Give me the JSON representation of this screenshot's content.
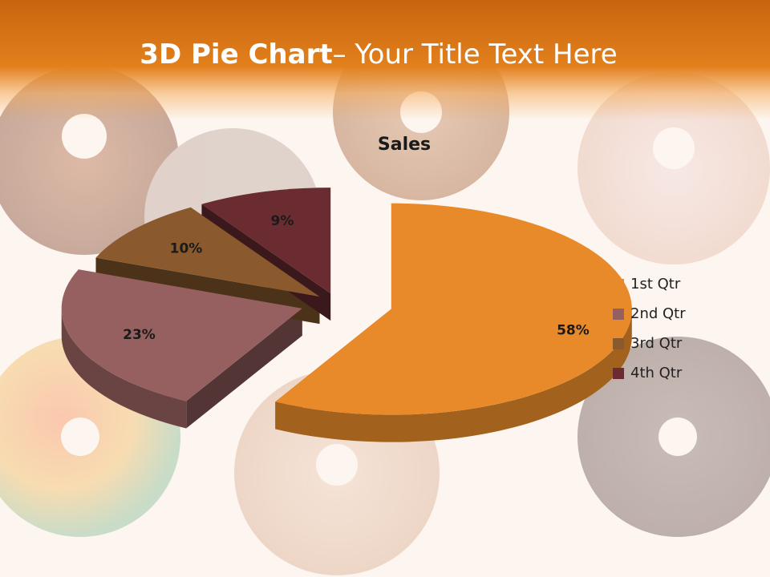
{
  "slide": {
    "title_bold": "3D Pie Chart",
    "title_rest": "– Your Title Text Here"
  },
  "chart_data": {
    "type": "pie",
    "title": "Sales",
    "categories": [
      "1st Qtr",
      "2nd Qtr",
      "3rd Qtr",
      "4th Qtr"
    ],
    "values": [
      58,
      23,
      10,
      9
    ],
    "data_labels": [
      "58%",
      "23%",
      "10%",
      "9%"
    ],
    "colors": [
      "#e88a2a",
      "#976060",
      "#8a5a2e",
      "#6a2c31"
    ],
    "legend_position": "right",
    "style": "3d-exploded"
  }
}
